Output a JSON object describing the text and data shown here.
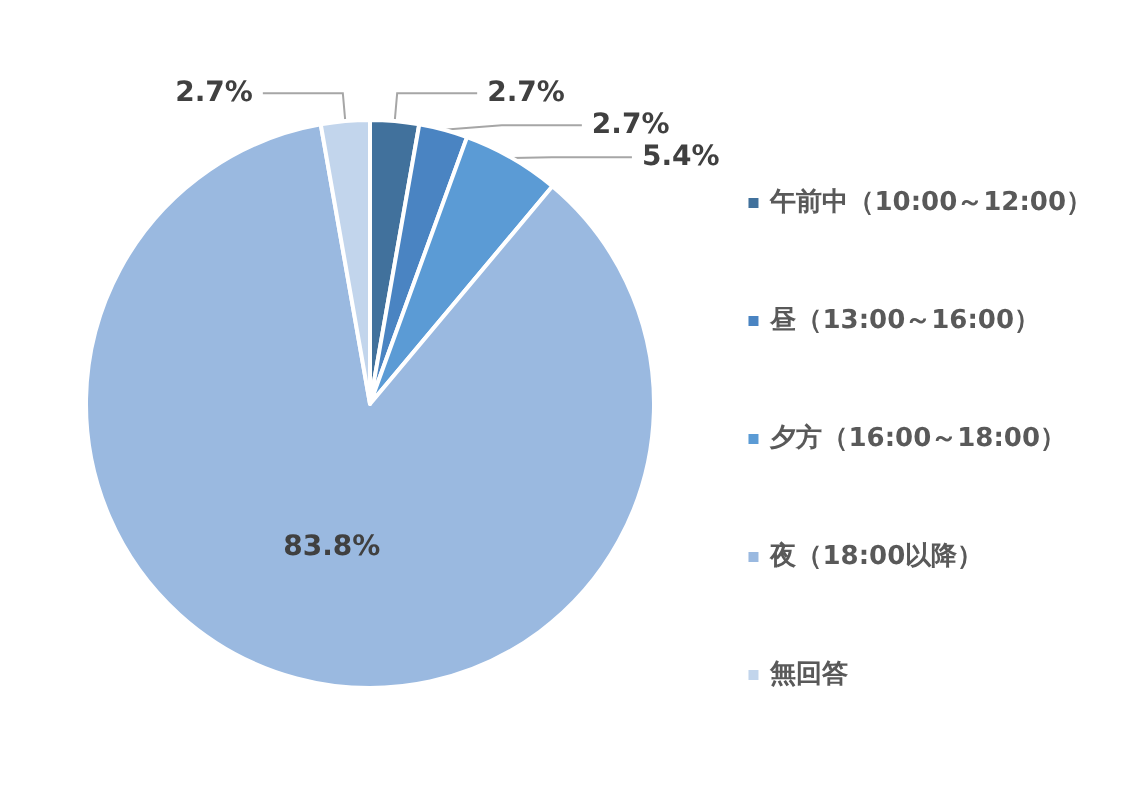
{
  "chart_data": {
    "type": "pie",
    "categories": [
      "午前中（10:00～12:00）",
      "昼（13:00～16:00）",
      "夕方（16:00～18:00）",
      "夜（18:00以降）",
      "無回答"
    ],
    "values": [
      2.7,
      2.7,
      5.4,
      83.8,
      2.7
    ],
    "value_labels": [
      "2.7%",
      "2.7%",
      "5.4%",
      "83.8%",
      "2.7%"
    ],
    "colors": [
      "#41719c",
      "#4a84c2",
      "#5b9bd5",
      "#9ab9e0",
      "#c2d5ec"
    ],
    "legend": "right"
  }
}
